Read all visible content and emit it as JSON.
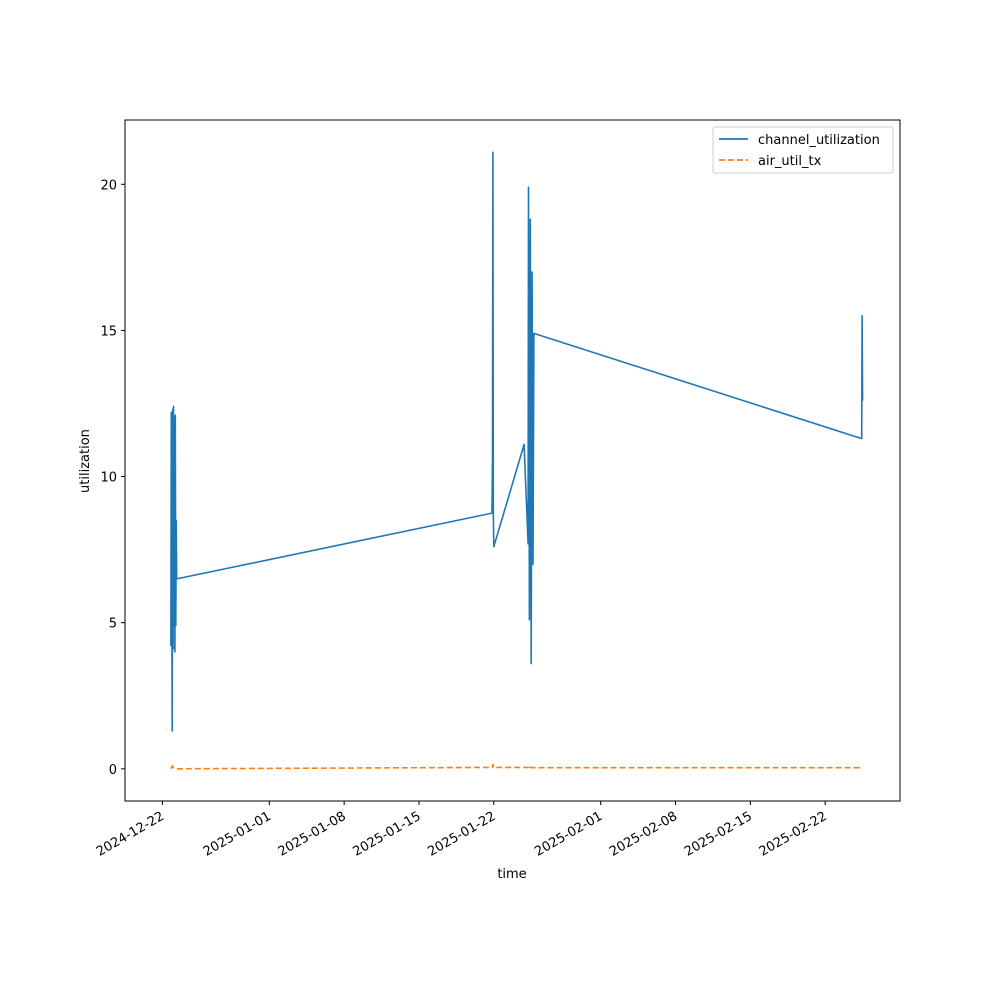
{
  "chart_data": {
    "type": "line",
    "title": "",
    "xlabel": "time",
    "ylabel": "utilization",
    "x_is_date": true,
    "xlim": [
      "2024-12-18T12:00",
      "2025-03-01T00:00"
    ],
    "ylim": [
      -1.1,
      22.2
    ],
    "xticks": [
      "2024-12-22",
      "2025-01-01",
      "2025-01-08",
      "2025-01-15",
      "2025-01-22",
      "2025-02-01",
      "2025-02-08",
      "2025-02-15",
      "2025-02-22"
    ],
    "yticks": [
      0,
      5,
      10,
      15,
      20
    ],
    "grid": false,
    "legend_position": "upper-right",
    "series": [
      {
        "name": "channel_utilization",
        "color": "#1f77b4",
        "dash": "solid",
        "points": [
          [
            "2024-12-22T19:00",
            4.2
          ],
          [
            "2024-12-22T20:00",
            12.2
          ],
          [
            "2024-12-22T21:00",
            6.5
          ],
          [
            "2024-12-22T22:00",
            1.3
          ],
          [
            "2024-12-22T23:00",
            12.3
          ],
          [
            "2024-12-23T00:00",
            4.1
          ],
          [
            "2024-12-23T01:00",
            12.4
          ],
          [
            "2024-12-23T02:00",
            4.9
          ],
          [
            "2024-12-23T03:00",
            12.0
          ],
          [
            "2024-12-23T04:00",
            4.0
          ],
          [
            "2024-12-23T05:00",
            12.1
          ],
          [
            "2024-12-23T06:00",
            4.9
          ],
          [
            "2024-12-23T07:00",
            8.5
          ],
          [
            "2024-12-23T08:00",
            6.5
          ],
          [
            "2025-01-21T20:00",
            8.75
          ],
          [
            "2025-01-21T21:00",
            10.6
          ],
          [
            "2025-01-21T22:00",
            21.1
          ],
          [
            "2025-01-21T23:00",
            8.8
          ],
          [
            "2025-01-22T00:00",
            7.6
          ],
          [
            "2025-01-24T20:00",
            11.1
          ],
          [
            "2025-01-25T05:00",
            7.7
          ],
          [
            "2025-01-25T06:00",
            19.9
          ],
          [
            "2025-01-25T08:00",
            5.1
          ],
          [
            "2025-01-25T10:00",
            18.8
          ],
          [
            "2025-01-25T12:00",
            3.6
          ],
          [
            "2025-01-25T14:00",
            17.0
          ],
          [
            "2025-01-25T16:00",
            7.0
          ],
          [
            "2025-01-25T18:00",
            14.9
          ],
          [
            "2025-02-25T10:00",
            11.3
          ],
          [
            "2025-02-25T11:00",
            15.5
          ],
          [
            "2025-02-25T12:00",
            12.6
          ]
        ]
      },
      {
        "name": "air_util_tx",
        "color": "#ff7f0e",
        "dash": "dashed",
        "points": [
          [
            "2024-12-22T19:00",
            0.0
          ],
          [
            "2024-12-22T22:00",
            0.1
          ],
          [
            "2024-12-23T01:00",
            0.04
          ],
          [
            "2024-12-23T06:00",
            0.0
          ],
          [
            "2025-01-21T21:00",
            0.05
          ],
          [
            "2025-01-21T22:00",
            0.15
          ],
          [
            "2025-01-22T00:00",
            0.05
          ],
          [
            "2025-01-25T06:00",
            0.05
          ],
          [
            "2025-01-25T08:00",
            0.12
          ],
          [
            "2025-01-25T12:00",
            0.04
          ],
          [
            "2025-02-25T10:00",
            0.04
          ],
          [
            "2025-02-25T12:00",
            0.05
          ]
        ]
      }
    ]
  }
}
